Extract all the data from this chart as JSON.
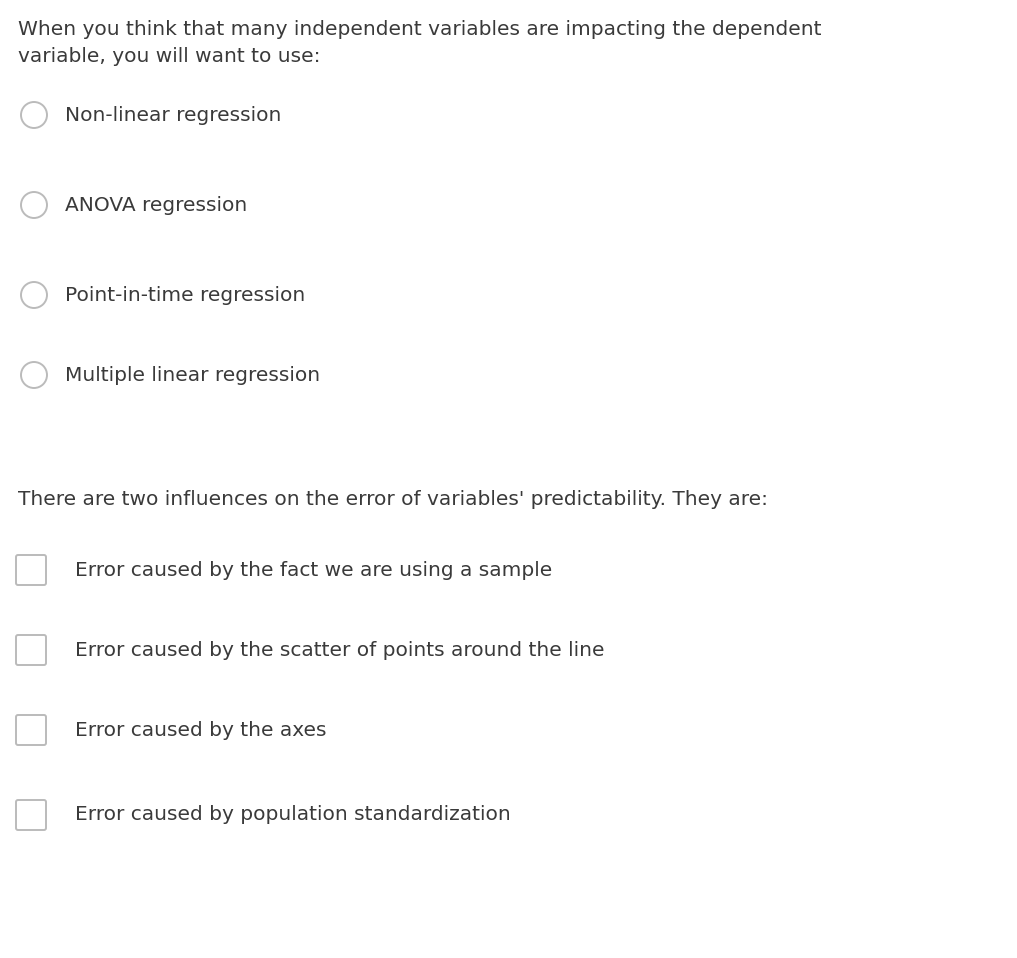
{
  "background_color": "#ffffff",
  "question1": "When you think that many independent variables are impacting the dependent\nvariable, you will want to use:",
  "radio_options": [
    "Non-linear regression",
    "ANOVA regression",
    "Point-in-time regression",
    "Multiple linear regression"
  ],
  "question2": "There are two influences on the error of variables' predictability. They are:",
  "checkbox_options": [
    "Error caused by the fact we are using a sample",
    "Error caused by the scatter of points around the line",
    "Error caused by the axes",
    "Error caused by population standardization"
  ],
  "text_color": "#3a3a3a",
  "circle_color": "#bbbbbb",
  "checkbox_color": "#bbbbbb",
  "font_size_question": 14.5,
  "font_size_option": 14.5,
  "fig_width": 10.17,
  "fig_height": 9.58,
  "dpi": 100
}
